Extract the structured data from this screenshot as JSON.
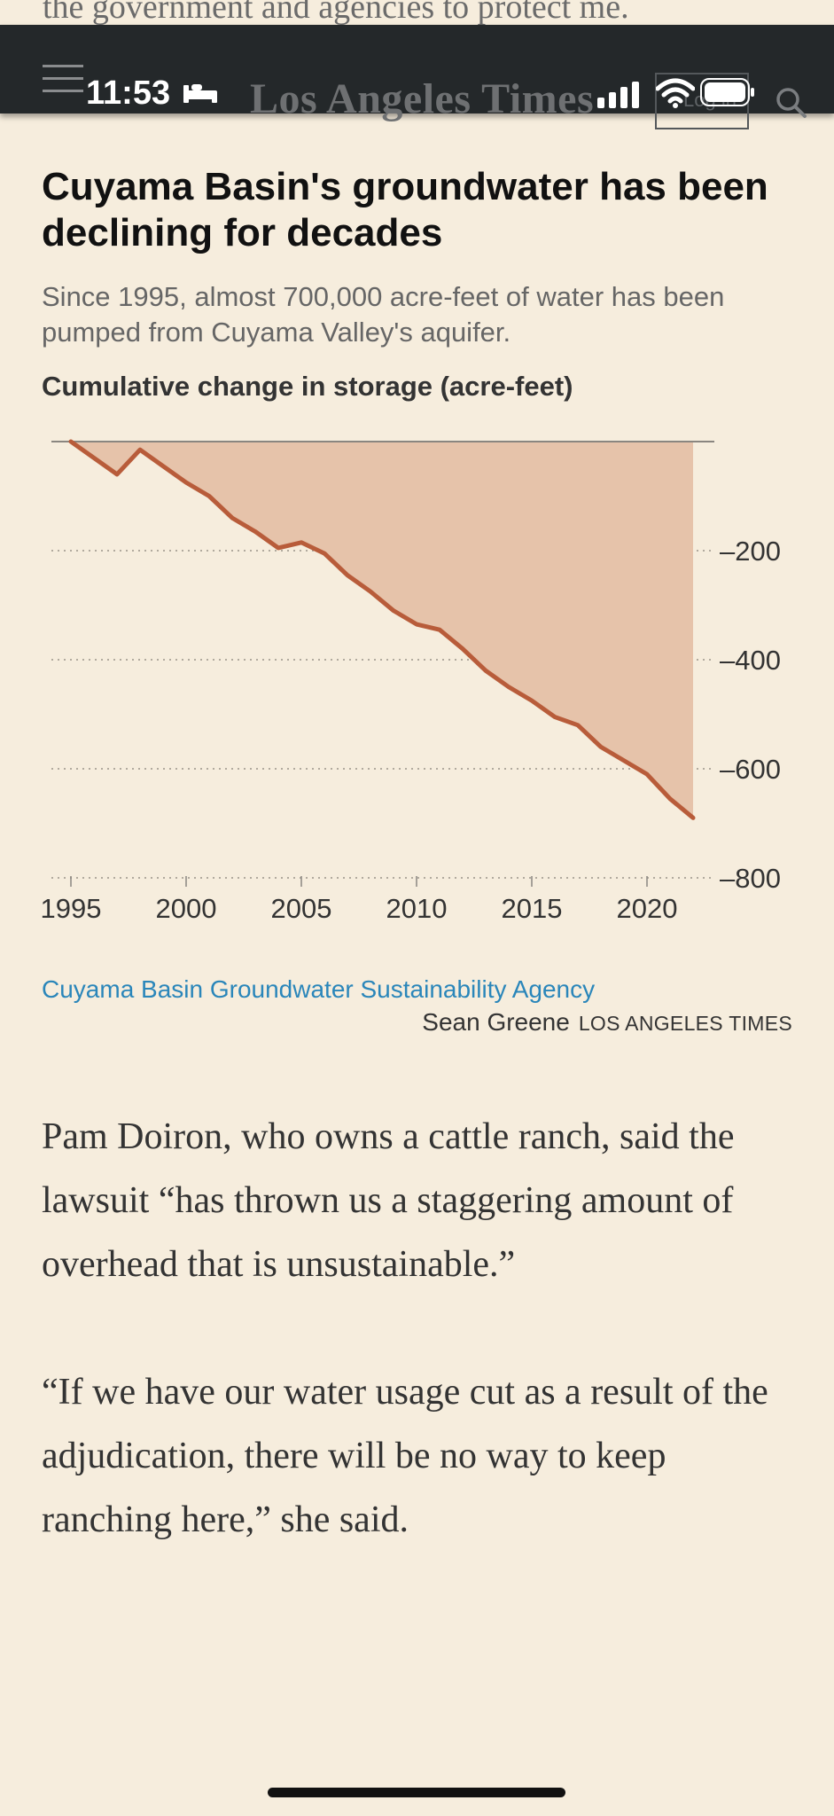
{
  "behind_text": "the government and agencies to protect me.",
  "status_bar": {
    "time": "11:53"
  },
  "header": {
    "masthead": "Los Angeles Times",
    "subscribe_label": "Log in"
  },
  "article": {
    "headline": "Cuyama Basin's groundwater has been declining for decades",
    "subhead": "Since 1995, almost 700,000 acre-feet of water has been pumped from Cuyama Valley's aquifer.",
    "chart_label": "Cumulative change in storage (acre-feet)",
    "source": "Cuyama Basin Groundwater Sustainability Agency",
    "credit_name": "Sean Greene",
    "credit_org": "LOS ANGELES TIMES",
    "paragraphs": [
      "Pam Doiron, who owns a cattle ranch, said the lawsuit “has thrown us a staggering amount of overhead that is unsustainable.”",
      "“If we have our water usage cut as a result of the adjudication, there will be no way to keep ranching here,” she said."
    ]
  },
  "colors": {
    "line": "#b85c3a",
    "fill": "#e6c3aa",
    "background": "#f6eddd"
  },
  "chart_data": {
    "type": "area",
    "title": "Cumulative change in storage (acre-feet)",
    "xlabel": "",
    "ylabel": "",
    "x": [
      1995,
      1996,
      1997,
      1998,
      1999,
      2000,
      2001,
      2002,
      2003,
      2004,
      2005,
      2006,
      2007,
      2008,
      2009,
      2010,
      2011,
      2012,
      2013,
      2014,
      2015,
      2016,
      2017,
      2018,
      2019,
      2020,
      2021,
      2022
    ],
    "values": [
      0,
      -30,
      -60,
      -15,
      -45,
      -75,
      -100,
      -140,
      -165,
      -195,
      -185,
      -205,
      -245,
      -275,
      -310,
      -335,
      -345,
      -380,
      -420,
      -450,
      -475,
      -505,
      -520,
      -560,
      -585,
      -610,
      -655,
      -690
    ],
    "xticks": [
      "1995",
      "2000",
      "2005",
      "2010",
      "2015",
      "2020"
    ],
    "yticks": [
      "–200",
      "–400",
      "–600",
      "–800"
    ],
    "xlim": [
      1995,
      2023
    ],
    "ylim": [
      -800,
      0
    ],
    "grid": true
  }
}
